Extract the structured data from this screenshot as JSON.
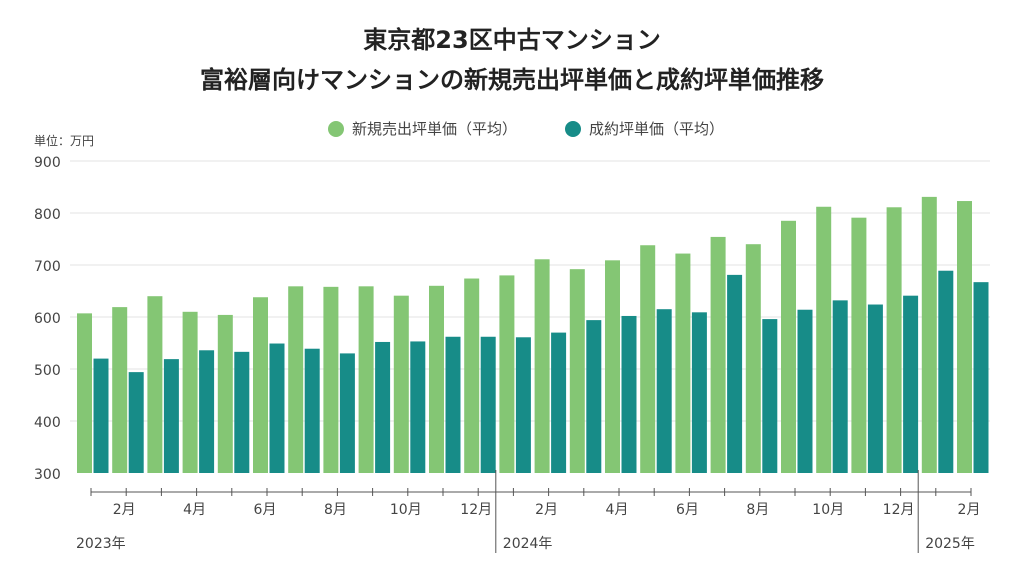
{
  "chart_data": {
    "type": "bar",
    "title": "東京都23区中古マンション",
    "subtitle": "富裕層向けマンションの新規売出坪単価と成約坪単価推移",
    "ylabel": "単位：万円",
    "xlabel": "",
    "ylim": [
      300,
      900
    ],
    "yticks": [
      "300",
      "400",
      "500",
      "600",
      "700",
      "800",
      "900"
    ],
    "grid": true,
    "legend_position": "top-center",
    "categories": [
      "2023-01",
      "2023-02",
      "2023-03",
      "2023-04",
      "2023-05",
      "2023-06",
      "2023-07",
      "2023-08",
      "2023-09",
      "2023-10",
      "2023-11",
      "2023-12",
      "2024-01",
      "2024-02",
      "2024-03",
      "2024-04",
      "2024-05",
      "2024-06",
      "2024-07",
      "2024-08",
      "2024-09",
      "2024-10",
      "2024-11",
      "2024-12",
      "2025-01",
      "2025-02"
    ],
    "month_labels": [
      {
        "index": 1,
        "label": "2月"
      },
      {
        "index": 3,
        "label": "4月"
      },
      {
        "index": 5,
        "label": "6月"
      },
      {
        "index": 7,
        "label": "8月"
      },
      {
        "index": 9,
        "label": "10月"
      },
      {
        "index": 11,
        "label": "12月"
      },
      {
        "index": 13,
        "label": "2月"
      },
      {
        "index": 15,
        "label": "4月"
      },
      {
        "index": 17,
        "label": "6月"
      },
      {
        "index": 19,
        "label": "8月"
      },
      {
        "index": 21,
        "label": "10月"
      },
      {
        "index": 23,
        "label": "12月"
      },
      {
        "index": 25,
        "label": "2月"
      }
    ],
    "year_labels": [
      {
        "start": 0,
        "label": "2023年"
      },
      {
        "start": 12,
        "label": "2024年"
      },
      {
        "start": 24,
        "label": "2025年"
      }
    ],
    "series": [
      {
        "name": "新規売出坪単価（平均）",
        "color": "#84c674",
        "values": [
          607,
          619,
          640,
          610,
          604,
          638,
          659,
          658,
          659,
          641,
          660,
          674,
          680,
          711,
          692,
          709,
          738,
          722,
          754,
          740,
          785,
          812,
          791,
          811,
          831,
          823
        ]
      },
      {
        "name": "成約坪単価（平均）",
        "color": "#178c88",
        "values": [
          520,
          494,
          519,
          536,
          533,
          549,
          539,
          530,
          552,
          553,
          562,
          562,
          561,
          570,
          594,
          602,
          615,
          609,
          681,
          596,
          614,
          632,
          624,
          641,
          689,
          667
        ]
      }
    ]
  }
}
